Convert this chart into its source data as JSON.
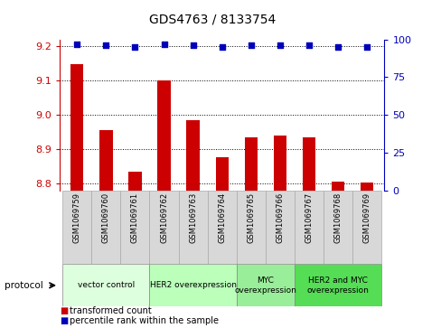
{
  "title": "GDS4763 / 8133754",
  "samples": [
    "GSM1069759",
    "GSM1069760",
    "GSM1069761",
    "GSM1069762",
    "GSM1069763",
    "GSM1069764",
    "GSM1069765",
    "GSM1069766",
    "GSM1069767",
    "GSM1069768",
    "GSM1069769"
  ],
  "bar_values": [
    9.148,
    8.955,
    8.835,
    9.1,
    8.985,
    8.875,
    8.935,
    8.94,
    8.935,
    8.805,
    8.802
  ],
  "percentile_values": [
    97,
    96,
    95,
    97,
    96,
    95,
    96,
    96,
    96,
    95,
    95
  ],
  "ylim_left": [
    8.78,
    9.22
  ],
  "ylim_right": [
    0,
    100
  ],
  "right_ticks": [
    0,
    25,
    50,
    75,
    100
  ],
  "left_ticks": [
    8.8,
    8.9,
    9.0,
    9.1,
    9.2
  ],
  "bar_color": "#cc0000",
  "dot_color": "#0000bb",
  "groups": [
    {
      "label": "vector control",
      "start": 0,
      "end": 2,
      "color": "#ddffdd"
    },
    {
      "label": "HER2 overexpression",
      "start": 3,
      "end": 5,
      "color": "#bbffbb"
    },
    {
      "label": "MYC\noverexpression",
      "start": 6,
      "end": 7,
      "color": "#99ee99"
    },
    {
      "label": "HER2 and MYC\noverexpression",
      "start": 8,
      "end": 10,
      "color": "#55dd55"
    }
  ],
  "legend_bar_label": "transformed count",
  "legend_dot_label": "percentile rank within the sample",
  "protocol_label": "protocol",
  "right_axis_color": "#0000bb",
  "left_axis_color": "#cc0000",
  "bg_color": "#d8d8d8",
  "plot_bg": "#ffffff"
}
